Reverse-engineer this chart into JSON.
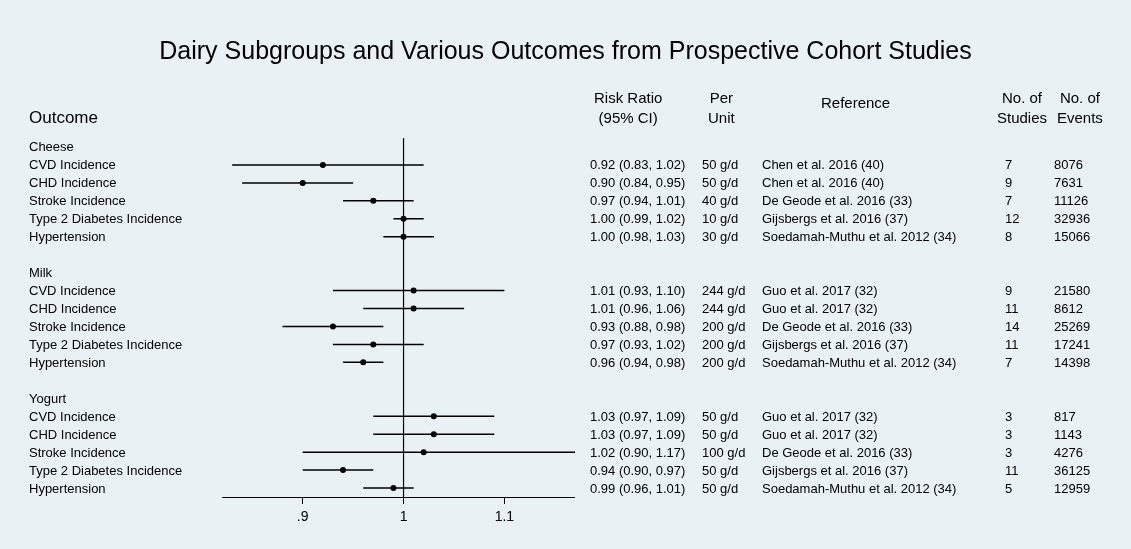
{
  "chart_data": {
    "type": "scatter",
    "orientation": "horizontal",
    "title": "Dairy Subgroups and Various Outcomes from Prospective Cohort Studies",
    "ylabel": "Outcome",
    "categories": [
      "Cheese",
      "CVD Incidence",
      "CHD Incidence",
      "Stroke Incidence",
      "Type 2 Diabetes Incidence",
      "Hypertension",
      null,
      "Milk",
      "CVD Incidence",
      "CHD Incidence",
      "Stroke Incidence",
      "Type 2 Diabetes Incidence",
      "Hypertension",
      null,
      "Yogurt",
      "CVD Incidence",
      "CHD Incidence",
      "Stroke Incidence",
      "Type 2 Diabetes Incidence",
      "Hypertension"
    ],
    "values": [
      null,
      0.92,
      0.9,
      0.97,
      1.0,
      1.0,
      null,
      null,
      1.01,
      1.01,
      0.93,
      0.97,
      0.96,
      null,
      null,
      1.03,
      1.03,
      1.02,
      0.94,
      0.99
    ],
    "errors": [
      null,
      [
        0.83,
        1.02
      ],
      [
        0.84,
        0.95
      ],
      [
        0.94,
        1.01
      ],
      [
        0.99,
        1.02
      ],
      [
        0.98,
        1.03
      ],
      null,
      null,
      [
        0.93,
        1.1
      ],
      [
        0.96,
        1.06
      ],
      [
        0.88,
        0.98
      ],
      [
        0.93,
        1.02
      ],
      [
        0.94,
        0.98
      ],
      null,
      null,
      [
        0.97,
        1.09
      ],
      [
        0.97,
        1.09
      ],
      [
        0.9,
        1.17
      ],
      [
        0.9,
        0.97
      ],
      [
        0.96,
        1.01
      ]
    ],
    "value_labels": [
      null,
      "0.92 (0.83, 1.02)",
      "0.90 (0.84, 0.95)",
      "0.97 (0.94, 1.01)",
      "1.00 (0.99, 1.02)",
      "1.00 (0.98, 1.03)",
      null,
      null,
      "1.01 (0.93, 1.10)",
      "1.01 (0.96, 1.06)",
      "0.93 (0.88, 0.98)",
      "0.97 (0.93, 1.02)",
      "0.96 (0.94, 0.98)",
      null,
      null,
      "1.03 (0.97, 1.09)",
      "1.03 (0.97, 1.09)",
      "1.02 (0.90, 1.17)",
      "0.94 (0.90, 0.97)",
      "0.99 (0.96, 1.01)"
    ],
    "color": "#000000",
    "marker": "circle",
    "grid": false,
    "xlim": [
      0.82,
      1.17
    ],
    "xticks": [
      {
        "value": 0.9,
        "label": ".9"
      },
      1,
      1.1
    ],
    "ref_lines": [
      {
        "axis": "x",
        "value": 1,
        "color": "#000000"
      }
    ],
    "annotations": [
      "Risk Ratio\n(95% CI)",
      "Per\nUnit",
      "Reference",
      "No. of\nStudies",
      "No. of\nEvents",
      "50 g/d",
      "Chen et al. 2016 (40)",
      "7",
      "8076",
      "50 g/d",
      "Chen et al. 2016 (40)",
      "9",
      "7631",
      "40 g/d",
      "De Geode et al. 2016 (33)",
      "7",
      "11126",
      "10 g/d",
      "Gijsbergs et al. 2016 (37)",
      "12",
      "32936",
      "30 g/d",
      "Soedamah-Muthu et al. 2012 (34)",
      "8",
      "15066",
      "244 g/d",
      "Guo et al. 2017 (32)",
      "9",
      "21580",
      "244 g/d",
      "Guo et al. 2017 (32)",
      "11",
      "8612",
      "200 g/d",
      "De Geode et al. 2016 (33)",
      "14",
      "25269",
      "200 g/d",
      "Gijsbergs et al. 2016 (37)",
      "11",
      "17241",
      "200 g/d",
      "Soedamah-Muthu et al. 2012 (34)",
      "7",
      "14398",
      "50 g/d",
      "Guo et al. 2017 (32)",
      "3",
      "817",
      "50 g/d",
      "Guo et al. 2017 (32)",
      "3",
      "1143",
      "100 g/d",
      "De Geode et al. 2016 (33)",
      "3",
      "4276",
      "50 g/d",
      "Gijsbergs et al. 2016 (37)",
      "11",
      "36125",
      "50 g/d",
      "Soedamah-Muthu et al. 2012 (34)",
      "5",
      "12959"
    ]
  }
}
